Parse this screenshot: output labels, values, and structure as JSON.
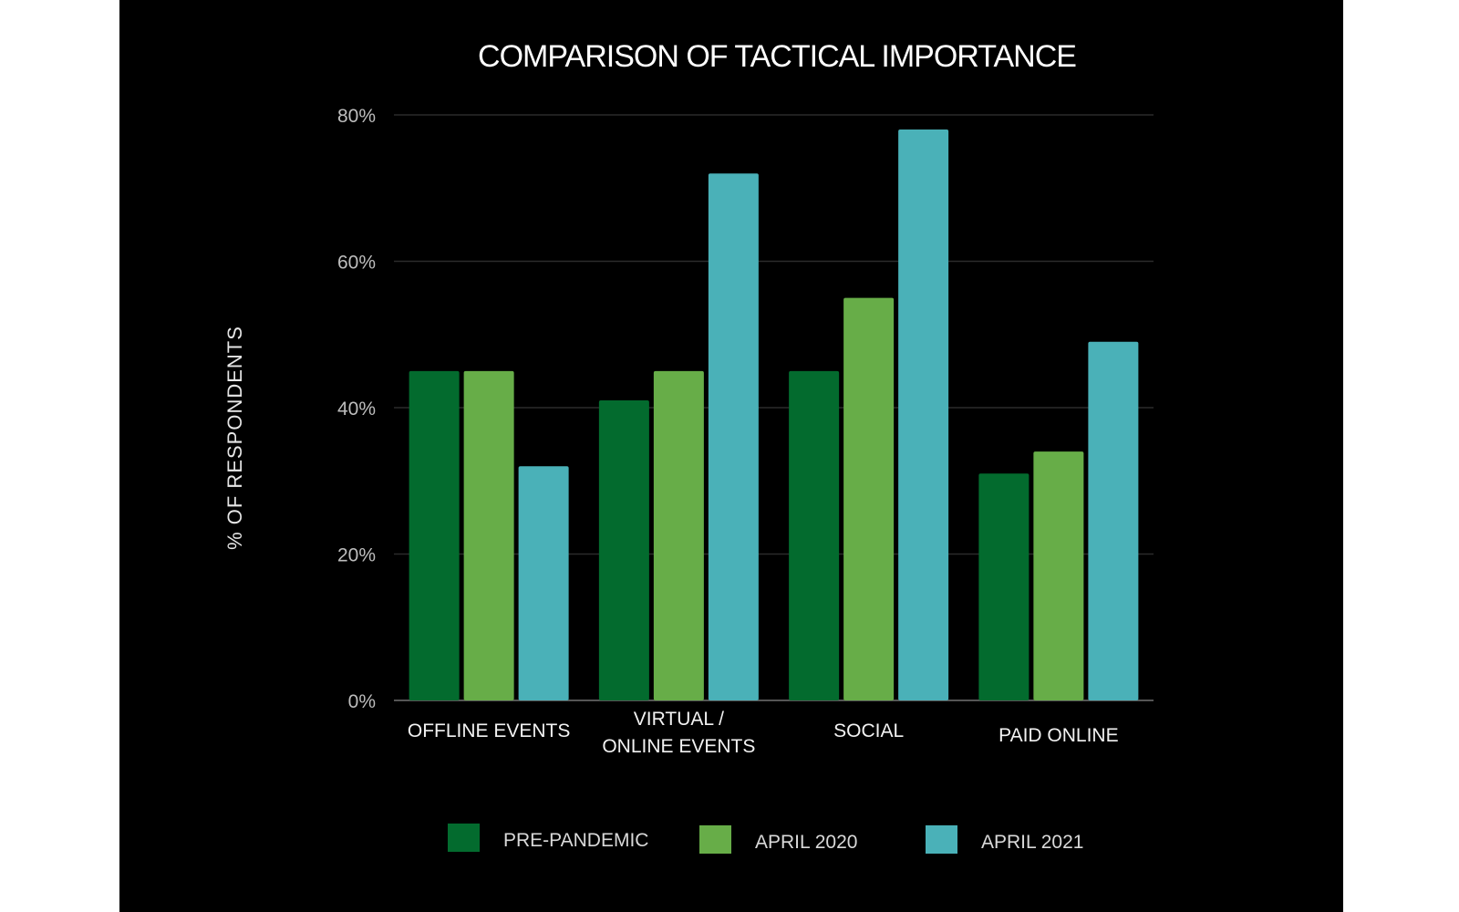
{
  "chart_data": {
    "type": "bar",
    "title": "COMPARISON OF TACTICAL IMPORTANCE",
    "xlabel": "",
    "ylabel": "% OF RESPONDENTS",
    "ylim": [
      0,
      80
    ],
    "yticks": [
      "0%",
      "20%",
      "40%",
      "60%",
      "80%"
    ],
    "grid": true,
    "legend_position": "bottom",
    "categories": [
      [
        "OFFLINE EVENTS"
      ],
      [
        "VIRTUAL /",
        "ONLINE EVENTS"
      ],
      [
        "SOCIAL"
      ],
      [
        "PAID ONLINE"
      ]
    ],
    "series": [
      {
        "name": "PRE-PANDEMIC",
        "color": "#036b2e",
        "values": [
          45,
          41,
          45,
          31
        ]
      },
      {
        "name": "APRIL 2020",
        "color": "#67ad48",
        "values": [
          45,
          45,
          55,
          34
        ]
      },
      {
        "name": "APRIL 2021",
        "color": "#4ab1b8",
        "values": [
          32,
          72,
          78,
          49
        ]
      }
    ]
  },
  "colors": {
    "background": "#000000",
    "page": "#ffffff",
    "gridline": "#2b2b2b",
    "baseline": "#555555"
  }
}
